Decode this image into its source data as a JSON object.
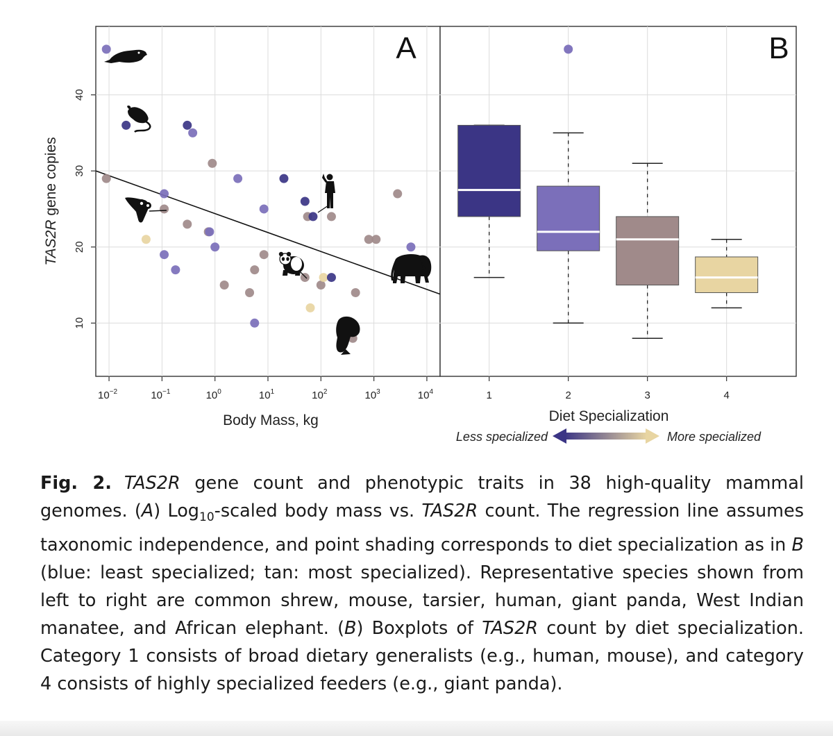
{
  "chart_data": [
    {
      "type": "scatter",
      "panel": "A",
      "xlabel": "Body Mass, kg",
      "ylabel_italic": "TAS2R",
      "ylabel_rest": " gene copies",
      "x_scale": "log10",
      "xlim_exp": [
        -2.25,
        4.25
      ],
      "ylim": [
        3,
        49
      ],
      "x_tick_exponents": [
        "-2",
        "-1",
        "0",
        "1",
        "2",
        "3",
        "4"
      ],
      "x_tick_base": "10",
      "y_ticks": [
        10,
        20,
        30,
        40
      ],
      "grid": true,
      "regression_line": {
        "x": [
          0.005623,
          17783
        ],
        "y": [
          30,
          13.8
        ]
      },
      "diet_colors": {
        "1": "#3b3585",
        "2": "#7b6fba",
        "3": "#a08a8a",
        "4": "#e8d5a2"
      },
      "points": [
        {
          "mass": 0.0089,
          "count": 46,
          "diet": 2
        },
        {
          "mass": 0.021,
          "count": 36,
          "diet": 1
        },
        {
          "mass": 0.0089,
          "count": 29,
          "diet": 3
        },
        {
          "mass": 0.05,
          "count": 21,
          "diet": 4
        },
        {
          "mass": 0.11,
          "count": 27,
          "diet": 2
        },
        {
          "mass": 0.11,
          "count": 25,
          "diet": 3
        },
        {
          "mass": 0.11,
          "count": 19,
          "diet": 2
        },
        {
          "mass": 0.18,
          "count": 17,
          "diet": 2
        },
        {
          "mass": 0.3,
          "count": 36,
          "diet": 1
        },
        {
          "mass": 0.38,
          "count": 35,
          "diet": 2
        },
        {
          "mass": 0.3,
          "count": 23,
          "diet": 3
        },
        {
          "mass": 0.89,
          "count": 31,
          "diet": 3
        },
        {
          "mass": 0.75,
          "count": 22,
          "diet": 3
        },
        {
          "mass": 0.79,
          "count": 22,
          "diet": 2
        },
        {
          "mass": 1.0,
          "count": 20,
          "diet": 2
        },
        {
          "mass": 1.5,
          "count": 15,
          "diet": 3
        },
        {
          "mass": 2.7,
          "count": 29,
          "diet": 2
        },
        {
          "mass": 4.5,
          "count": 14,
          "diet": 3
        },
        {
          "mass": 5.6,
          "count": 17,
          "diet": 3
        },
        {
          "mass": 5.6,
          "count": 10,
          "diet": 2
        },
        {
          "mass": 8.4,
          "count": 25,
          "diet": 2
        },
        {
          "mass": 8.4,
          "count": 19,
          "diet": 3
        },
        {
          "mass": 20,
          "count": 29,
          "diet": 1
        },
        {
          "mass": 50,
          "count": 26,
          "diet": 1
        },
        {
          "mass": 56,
          "count": 24,
          "diet": 3
        },
        {
          "mass": 71,
          "count": 24,
          "diet": 1
        },
        {
          "mass": 50,
          "count": 16,
          "diet": 3
        },
        {
          "mass": 63,
          "count": 12,
          "diet": 4
        },
        {
          "mass": 100,
          "count": 15,
          "diet": 3
        },
        {
          "mass": 112,
          "count": 16,
          "diet": 4
        },
        {
          "mass": 158,
          "count": 24,
          "diet": 3
        },
        {
          "mass": 158,
          "count": 16,
          "diet": 1
        },
        {
          "mass": 450,
          "count": 14,
          "diet": 3
        },
        {
          "mass": 400,
          "count": 8,
          "diet": 3
        },
        {
          "mass": 800,
          "count": 21,
          "diet": 3
        },
        {
          "mass": 1100,
          "count": 21,
          "diet": 3
        },
        {
          "mass": 2800,
          "count": 27,
          "diet": 3
        },
        {
          "mass": 5000,
          "count": 20,
          "diet": 2
        }
      ],
      "silhouettes": [
        "shrew-silhouette",
        "mouse-silhouette",
        "tarsier-silhouette",
        "human-silhouette",
        "panda-silhouette",
        "manatee-silhouette",
        "elephant-silhouette"
      ],
      "panel_label": "A"
    },
    {
      "type": "box",
      "panel": "B",
      "xlabel": "Diet Specialization",
      "categories": [
        "1",
        "2",
        "3",
        "4"
      ],
      "ylim": [
        3,
        49
      ],
      "grid": true,
      "boxes": [
        {
          "category": "1",
          "whisker_low": 16,
          "q1": 24,
          "median": 27.5,
          "q3": 36,
          "whisker_high": 36,
          "color": "#3b3585",
          "outliers": []
        },
        {
          "category": "2",
          "whisker_low": 10,
          "q1": 19.5,
          "median": 22,
          "q3": 28,
          "whisker_high": 35,
          "color": "#7b6fba",
          "outliers": [
            46
          ]
        },
        {
          "category": "3",
          "whisker_low": 8,
          "q1": 15,
          "median": 21,
          "q3": 24,
          "whisker_high": 31,
          "color": "#a08a8a",
          "outliers": []
        },
        {
          "category": "4",
          "whisker_low": 12,
          "q1": 14,
          "median": 16,
          "q3": 18.7,
          "whisker_high": 21,
          "color": "#e8d5a2",
          "outliers": []
        }
      ],
      "arrow_left_label": "Less specialized",
      "arrow_right_label": "More specialized",
      "panel_label": "B"
    }
  ],
  "caption": {
    "fig_label": "Fig. 2.",
    "p1_italic": "TAS2R",
    "p2": " gene count and phenotypic traits in 38 high-quality mammal genomes. (",
    "p3_italic": "A",
    "p4": ") Log",
    "p5_sub": "10",
    "p6": "-scaled body mass vs. ",
    "p7_italic": "TAS2R",
    "p8": " count. The regression line assumes taxonomic independence, and point shading corresponds to diet specialization as in ",
    "p9_italic": "B",
    "p10": " (blue: least specialized; tan: most specialized). Repre­sentative species shown from left to right are common shrew, mouse, tarsier, human, giant panda, West Indian manatee, and African elephant. (",
    "p11_italic": "B",
    "p12": ") Boxplots of ",
    "p13_italic": "TAS2R",
    "p14": " count by diet specialization. Category 1 consists of broad dietary generalists (e.g., human, mouse), and category 4 consists of highly specialized feeders (e.g., giant panda)."
  }
}
